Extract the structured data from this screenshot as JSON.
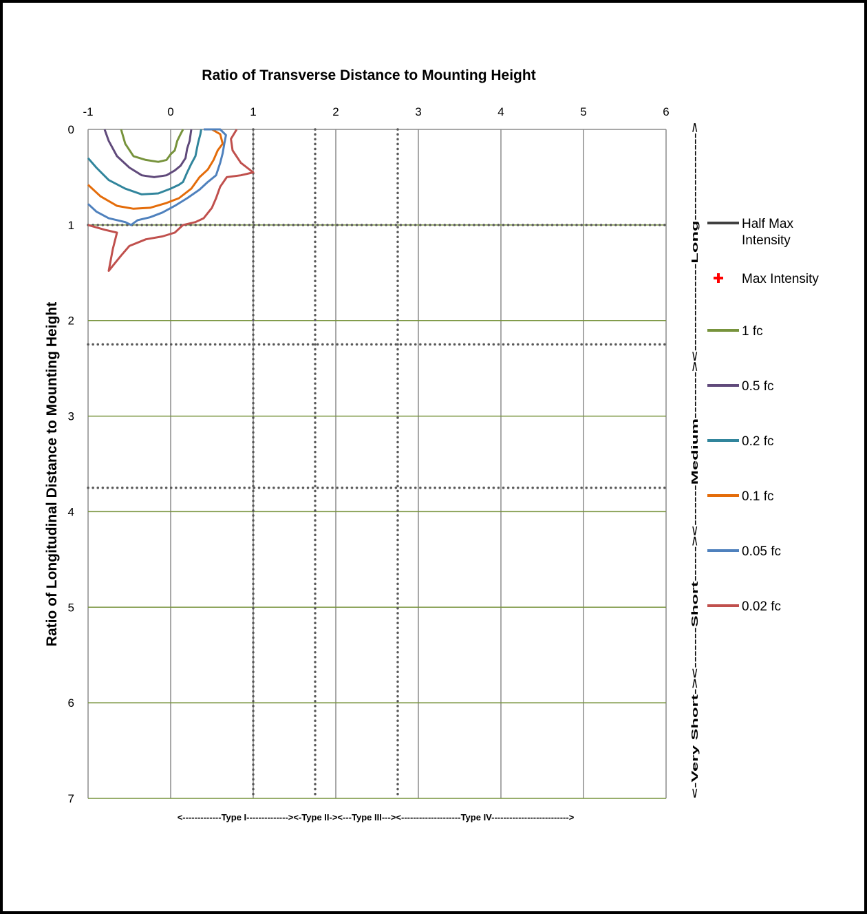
{
  "chart_data": {
    "type": "line",
    "title": "Ratio of Transverse Distance to Mounting Height",
    "xlabel": "Ratio of Transverse Distance to Mounting Height",
    "ylabel": "Ratio of Longitudinal Distance to Mounting Height",
    "x_axis_position": "top",
    "y_axis_reversed": true,
    "xlim": [
      -1,
      6
    ],
    "ylim": [
      0,
      7
    ],
    "x_ticks": [
      "-1",
      "0",
      "1",
      "2",
      "3",
      "4",
      "5",
      "6"
    ],
    "y_ticks": [
      "0",
      "1",
      "2",
      "3",
      "4",
      "5",
      "6",
      "7"
    ],
    "grid": true,
    "legend_position": "right",
    "horizontal_green_lines_y": [
      1,
      2,
      3,
      4,
      5,
      6,
      7
    ],
    "dotted_vertical_x": [
      1,
      1.75,
      2.75
    ],
    "dotted_horizontal_y": [
      1,
      2.25,
      3.75
    ],
    "bottom_band_label": "<-------------Type I--------------><-Type II-><---Type III---><--------------------Type IV-------------------------->",
    "right_band_labels": [
      "<-Very Short-",
      ">",
      "<-------Short-----",
      "->",
      "<-------Medium-------",
      "->",
      "<---------------Long---------------",
      ">"
    ],
    "series": [
      {
        "name": "Half Max Intensity",
        "color": "#404040",
        "points": []
      },
      {
        "name": "Max Intensity",
        "color": "#ff0000",
        "marker": "plus",
        "points": []
      },
      {
        "name": "1 fc",
        "color": "#77933c",
        "points": [
          [
            -0.6,
            0
          ],
          [
            -0.55,
            0.15
          ],
          [
            -0.45,
            0.28
          ],
          [
            -0.3,
            0.32
          ],
          [
            -0.15,
            0.34
          ],
          [
            -0.05,
            0.32
          ],
          [
            0.0,
            0.26
          ],
          [
            0.05,
            0.22
          ],
          [
            0.08,
            0.12
          ],
          [
            0.12,
            0.05
          ],
          [
            0.15,
            0
          ]
        ]
      },
      {
        "name": "0.5 fc",
        "color": "#604a7b",
        "points": [
          [
            -0.8,
            0
          ],
          [
            -0.75,
            0.12
          ],
          [
            -0.65,
            0.28
          ],
          [
            -0.5,
            0.4
          ],
          [
            -0.35,
            0.48
          ],
          [
            -0.2,
            0.5
          ],
          [
            -0.05,
            0.48
          ],
          [
            0.05,
            0.43
          ],
          [
            0.12,
            0.38
          ],
          [
            0.18,
            0.3
          ],
          [
            0.2,
            0.2
          ],
          [
            0.23,
            0.12
          ],
          [
            0.25,
            0
          ]
        ]
      },
      {
        "name": "0.2 fc",
        "color": "#31859c",
        "points": [
          [
            -1,
            0.3
          ],
          [
            -0.9,
            0.4
          ],
          [
            -0.75,
            0.53
          ],
          [
            -0.55,
            0.62
          ],
          [
            -0.35,
            0.68
          ],
          [
            -0.15,
            0.67
          ],
          [
            0.0,
            0.62
          ],
          [
            0.1,
            0.58
          ],
          [
            0.15,
            0.55
          ],
          [
            0.2,
            0.45
          ],
          [
            0.25,
            0.36
          ],
          [
            0.3,
            0.28
          ],
          [
            0.33,
            0.15
          ],
          [
            0.36,
            0.05
          ],
          [
            0.37,
            0
          ]
        ]
      },
      {
        "name": "0.1 fc",
        "color": "#e46c0a",
        "points": [
          [
            -1,
            0.58
          ],
          [
            -0.85,
            0.7
          ],
          [
            -0.65,
            0.8
          ],
          [
            -0.45,
            0.83
          ],
          [
            -0.25,
            0.82
          ],
          [
            -0.05,
            0.77
          ],
          [
            0.1,
            0.72
          ],
          [
            0.25,
            0.62
          ],
          [
            0.35,
            0.5
          ],
          [
            0.45,
            0.42
          ],
          [
            0.52,
            0.32
          ],
          [
            0.57,
            0.22
          ],
          [
            0.63,
            0.15
          ],
          [
            0.6,
            0.05
          ],
          [
            0.5,
            0
          ],
          [
            0.42,
            0
          ]
        ]
      },
      {
        "name": "0.05 fc",
        "color": "#4f81bd",
        "points": [
          [
            -1,
            0.78
          ],
          [
            -0.9,
            0.86
          ],
          [
            -0.75,
            0.93
          ],
          [
            -0.55,
            0.97
          ],
          [
            -0.48,
            1.0
          ],
          [
            -0.4,
            0.95
          ],
          [
            -0.25,
            0.92
          ],
          [
            -0.1,
            0.87
          ],
          [
            0.05,
            0.8
          ],
          [
            0.2,
            0.72
          ],
          [
            0.35,
            0.63
          ],
          [
            0.45,
            0.55
          ],
          [
            0.55,
            0.48
          ],
          [
            0.6,
            0.35
          ],
          [
            0.63,
            0.25
          ],
          [
            0.65,
            0.15
          ],
          [
            0.67,
            0.06
          ],
          [
            0.6,
            0
          ],
          [
            0.4,
            0
          ]
        ]
      },
      {
        "name": "0.02 fc",
        "color": "#c0504d",
        "points": [
          [
            -1,
            1.0
          ],
          [
            -0.8,
            1.05
          ],
          [
            -0.65,
            1.08
          ],
          [
            -0.7,
            1.25
          ],
          [
            -0.75,
            1.48
          ],
          [
            -0.6,
            1.32
          ],
          [
            -0.5,
            1.22
          ],
          [
            -0.3,
            1.15
          ],
          [
            -0.1,
            1.12
          ],
          [
            0.05,
            1.08
          ],
          [
            0.15,
            1.0
          ],
          [
            0.3,
            0.97
          ],
          [
            0.4,
            0.93
          ],
          [
            0.5,
            0.82
          ],
          [
            0.55,
            0.72
          ],
          [
            0.6,
            0.6
          ],
          [
            0.68,
            0.5
          ],
          [
            0.85,
            0.48
          ],
          [
            1.0,
            0.45
          ],
          [
            0.85,
            0.35
          ],
          [
            0.75,
            0.22
          ],
          [
            0.73,
            0.1
          ],
          [
            0.8,
            0
          ]
        ]
      }
    ]
  }
}
